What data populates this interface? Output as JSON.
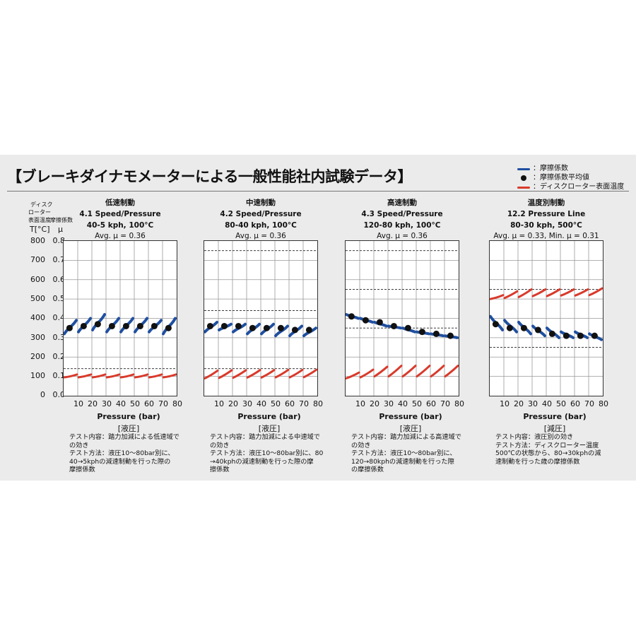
{
  "title": "【ブレーキダイナモメーターによる一般性能社内試験データ】",
  "legend": [
    {
      "label": "：摩擦係数",
      "kind": "line",
      "color": "#1f4fa0"
    },
    {
      "label": "：摩擦係数平均値",
      "kind": "dot",
      "color": "#111111"
    },
    {
      "label": "：ディスクローター表面温度",
      "kind": "line",
      "color": "#d93a2b"
    }
  ],
  "y_axis": {
    "temp_header": [
      "ディスク",
      "ローター",
      "表面温度"
    ],
    "mu_header": "摩擦係数",
    "temp_unit": "T[°C]",
    "mu_unit": "μ",
    "temp_ticks": [
      "800",
      "700",
      "600",
      "500",
      "400",
      "300",
      "200",
      "100",
      "0"
    ],
    "mu_ticks": [
      "0.8",
      "0.7",
      "0.6",
      "0.5",
      "0.4",
      "0.3",
      "0.2",
      "0.1",
      "0.0"
    ]
  },
  "colors": {
    "mu": "#1f4fa0",
    "temp": "#d93a2b",
    "avg": "#111111"
  },
  "chart_data": [
    {
      "type": "line",
      "jp_title": "低速制動",
      "title": "4.1 Speed/Pressure",
      "subtitle": "40-5 kph, 100°C",
      "avg_text": "Avg. μ = 0.36",
      "x": [
        10,
        20,
        30,
        40,
        50,
        60,
        70,
        80
      ],
      "xlabel": "Pressure (bar)",
      "bracket": "[液圧]",
      "ylim_mu": [
        0,
        0.8
      ],
      "ylim_temp": [
        0,
        800
      ],
      "series": [
        {
          "name": "摩擦係数",
          "values": [
            0.35,
            0.36,
            0.37,
            0.36,
            0.36,
            0.36,
            0.36,
            0.35
          ],
          "start": [
            0.32,
            0.33,
            0.34,
            0.33,
            0.33,
            0.33,
            0.33,
            0.32
          ],
          "end": [
            0.39,
            0.4,
            0.42,
            0.4,
            0.4,
            0.4,
            0.39,
            0.4
          ]
        },
        {
          "name": "ディスクローター表面温度",
          "start": [
            95,
            95,
            95,
            95,
            95,
            95,
            95,
            95
          ],
          "end": [
            110,
            110,
            110,
            110,
            110,
            110,
            110,
            110
          ]
        }
      ],
      "avg_points": [
        0.35,
        0.36,
        0.37,
        0.36,
        0.36,
        0.36,
        0.36,
        0.35
      ],
      "ref_lines_mu": [
        0.14
      ],
      "note": [
        "テスト内容：踏力加減による低速域で",
        "の効き",
        "テスト方法：液圧10～80bar別に、",
        "40→5kphの減速制動を行った際の",
        "摩擦係数"
      ]
    },
    {
      "type": "line",
      "jp_title": "中速制動",
      "title": "4.2 Speed/Pressure",
      "subtitle": "80-40 kph, 100°C",
      "avg_text": "Avg. μ = 0.36",
      "x": [
        10,
        20,
        30,
        40,
        50,
        60,
        70,
        80
      ],
      "xlabel": "Pressure (bar)",
      "bracket": "[液圧]",
      "ylim_mu": [
        0,
        0.8
      ],
      "ylim_temp": [
        0,
        800
      ],
      "series": [
        {
          "name": "摩擦係数",
          "values": [
            0.36,
            0.36,
            0.36,
            0.35,
            0.35,
            0.35,
            0.34,
            0.34
          ],
          "start": [
            0.33,
            0.34,
            0.33,
            0.32,
            0.32,
            0.31,
            0.31,
            0.31
          ],
          "end": [
            0.38,
            0.37,
            0.37,
            0.37,
            0.37,
            0.36,
            0.36,
            0.35
          ]
        },
        {
          "name": "ディスクローター表面温度",
          "start": [
            90,
            92,
            93,
            94,
            94,
            95,
            95,
            96
          ],
          "end": [
            130,
            132,
            132,
            133,
            133,
            134,
            134,
            135
          ]
        }
      ],
      "avg_points": [
        0.36,
        0.36,
        0.36,
        0.35,
        0.35,
        0.35,
        0.34,
        0.34
      ],
      "ref_lines_mu": [
        0.75,
        0.44,
        0.14
      ],
      "note": [
        "テスト内容：踏力加減による中速域で",
        "の効き",
        "テスト方法：液圧10～80bar別に、80",
        "→40kphの減速制動を行った際の摩",
        "擦係数"
      ]
    },
    {
      "type": "line",
      "jp_title": "高速制動",
      "title": "4.3 Speed/Pressure",
      "subtitle": "120-80 kph, 100°C",
      "avg_text": "Avg. μ = 0.36",
      "x": [
        10,
        20,
        30,
        40,
        50,
        60,
        70,
        80
      ],
      "xlabel": "Pressure (bar)",
      "bracket": "[液圧]",
      "ylim_mu": [
        0,
        0.8
      ],
      "ylim_temp": [
        0,
        800
      ],
      "series": [
        {
          "name": "摩擦係数",
          "values": [
            0.41,
            0.39,
            0.38,
            0.36,
            0.35,
            0.33,
            0.32,
            0.31
          ],
          "start": [
            0.42,
            0.4,
            0.38,
            0.36,
            0.35,
            0.33,
            0.32,
            0.31
          ],
          "end": [
            0.4,
            0.38,
            0.36,
            0.35,
            0.33,
            0.32,
            0.31,
            0.3
          ]
        },
        {
          "name": "ディスクローター表面温度",
          "start": [
            90,
            95,
            100,
            100,
            100,
            100,
            100,
            100
          ],
          "end": [
            120,
            135,
            150,
            155,
            155,
            155,
            155,
            155
          ]
        }
      ],
      "avg_points": [
        0.41,
        0.39,
        0.38,
        0.36,
        0.35,
        0.33,
        0.32,
        0.31
      ],
      "ref_lines_mu": [
        0.75,
        0.55,
        0.35
      ],
      "note": [
        "テスト内容：踏力加減による高速域で",
        "の効き",
        "テスト方法：液圧10～80bar別に、",
        "120→80kphの減速制動を行った際",
        "の摩擦係数"
      ]
    },
    {
      "type": "line",
      "jp_title": "温度別制動",
      "title": "12.2 Pressure Line",
      "subtitle": "80-30 kph, 500°C",
      "avg_text": "Avg. μ = 0.33, Min. μ = 0.31",
      "x": [
        10,
        20,
        30,
        40,
        50,
        60,
        70,
        80
      ],
      "xlabel": "Pressure (bar)",
      "bracket": "[減圧]",
      "ylim_mu": [
        0,
        0.8
      ],
      "ylim_temp": [
        0,
        800
      ],
      "series": [
        {
          "name": "摩擦係数",
          "values": [
            0.37,
            0.35,
            0.35,
            0.34,
            0.32,
            0.31,
            0.31,
            0.31
          ],
          "start": [
            0.41,
            0.39,
            0.38,
            0.36,
            0.35,
            0.33,
            0.33,
            0.32
          ],
          "end": [
            0.34,
            0.33,
            0.32,
            0.31,
            0.3,
            0.3,
            0.3,
            0.29
          ]
        },
        {
          "name": "ディスクローター表面温度",
          "start": [
            500,
            505,
            510,
            515,
            515,
            518,
            518,
            520
          ],
          "end": [
            520,
            540,
            550,
            550,
            550,
            550,
            550,
            555
          ]
        }
      ],
      "avg_points": [
        0.37,
        0.35,
        0.35,
        0.34,
        0.32,
        0.31,
        0.31,
        0.31
      ],
      "ref_lines_mu": [
        0.55,
        0.25
      ],
      "note": [
        "テスト内容：液圧別の効き",
        "テスト方法：ディスクローター温度",
        "500℃の状態から、80→30kphの減",
        "速制動を行った歳の摩擦係数"
      ]
    }
  ]
}
